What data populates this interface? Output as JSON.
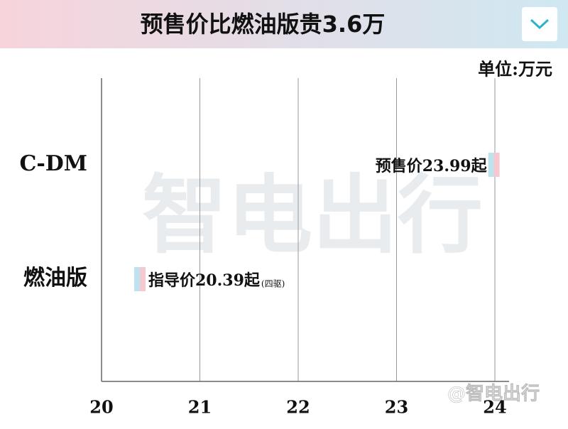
{
  "chart_data": {
    "type": "marker",
    "title": "预售价比燃油版贵3.6万",
    "unit": "单位:万元",
    "categories": [
      "C-DM",
      "燃油版"
    ],
    "values": [
      23.99,
      20.39
    ],
    "value_labels": [
      "预售价23.99起",
      "指导价20.39起"
    ],
    "annotations": [
      {
        "category": 1,
        "text": "(四驱)"
      }
    ],
    "xlim": [
      20,
      24
    ],
    "xticks": [
      20,
      21,
      22,
      23,
      24
    ],
    "grid": true,
    "colors": [
      "#bfe3ee",
      "#f6c9d1"
    ],
    "watermark": "智电出行",
    "credit": "@智电出行"
  }
}
